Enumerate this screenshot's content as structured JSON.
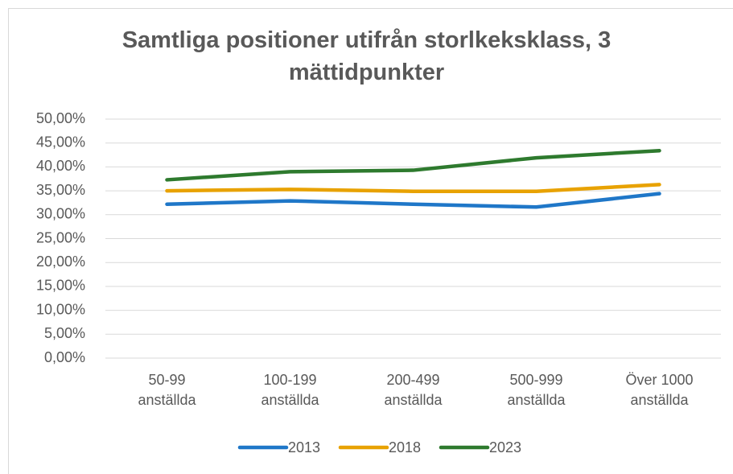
{
  "chart_data": {
    "type": "line",
    "title": "Samtliga positioner utifrån storlkeksklass, 3 mättidpunkter",
    "categories": [
      "50-99 anställda",
      "100-199 anställda",
      "200-499 anställda",
      "500-999 anställda",
      "Över 1000 anställda"
    ],
    "series": [
      {
        "name": "2013",
        "color": "#1f77c8",
        "values": [
          32.2,
          32.9,
          32.2,
          31.6,
          34.4
        ]
      },
      {
        "name": "2018",
        "color": "#e8a202",
        "values": [
          35.0,
          35.3,
          34.9,
          34.9,
          36.3
        ]
      },
      {
        "name": "2023",
        "color": "#2e7a2e",
        "values": [
          37.3,
          39.0,
          39.3,
          41.9,
          43.4
        ]
      }
    ],
    "ylim": [
      0,
      50
    ],
    "yticks": [
      {
        "value": 0,
        "label": "0,00%"
      },
      {
        "value": 5,
        "label": "5,00%"
      },
      {
        "value": 10,
        "label": "10,00%"
      },
      {
        "value": 15,
        "label": "15,00%"
      },
      {
        "value": 20,
        "label": "20,00%"
      },
      {
        "value": 25,
        "label": "25,00%"
      },
      {
        "value": 30,
        "label": "30,00%"
      },
      {
        "value": 35,
        "label": "35,00%"
      },
      {
        "value": 40,
        "label": "40,00%"
      },
      {
        "value": 45,
        "label": "45,00%"
      },
      {
        "value": 50,
        "label": "50,00%"
      }
    ],
    "grid": true,
    "legend": "bottom"
  }
}
